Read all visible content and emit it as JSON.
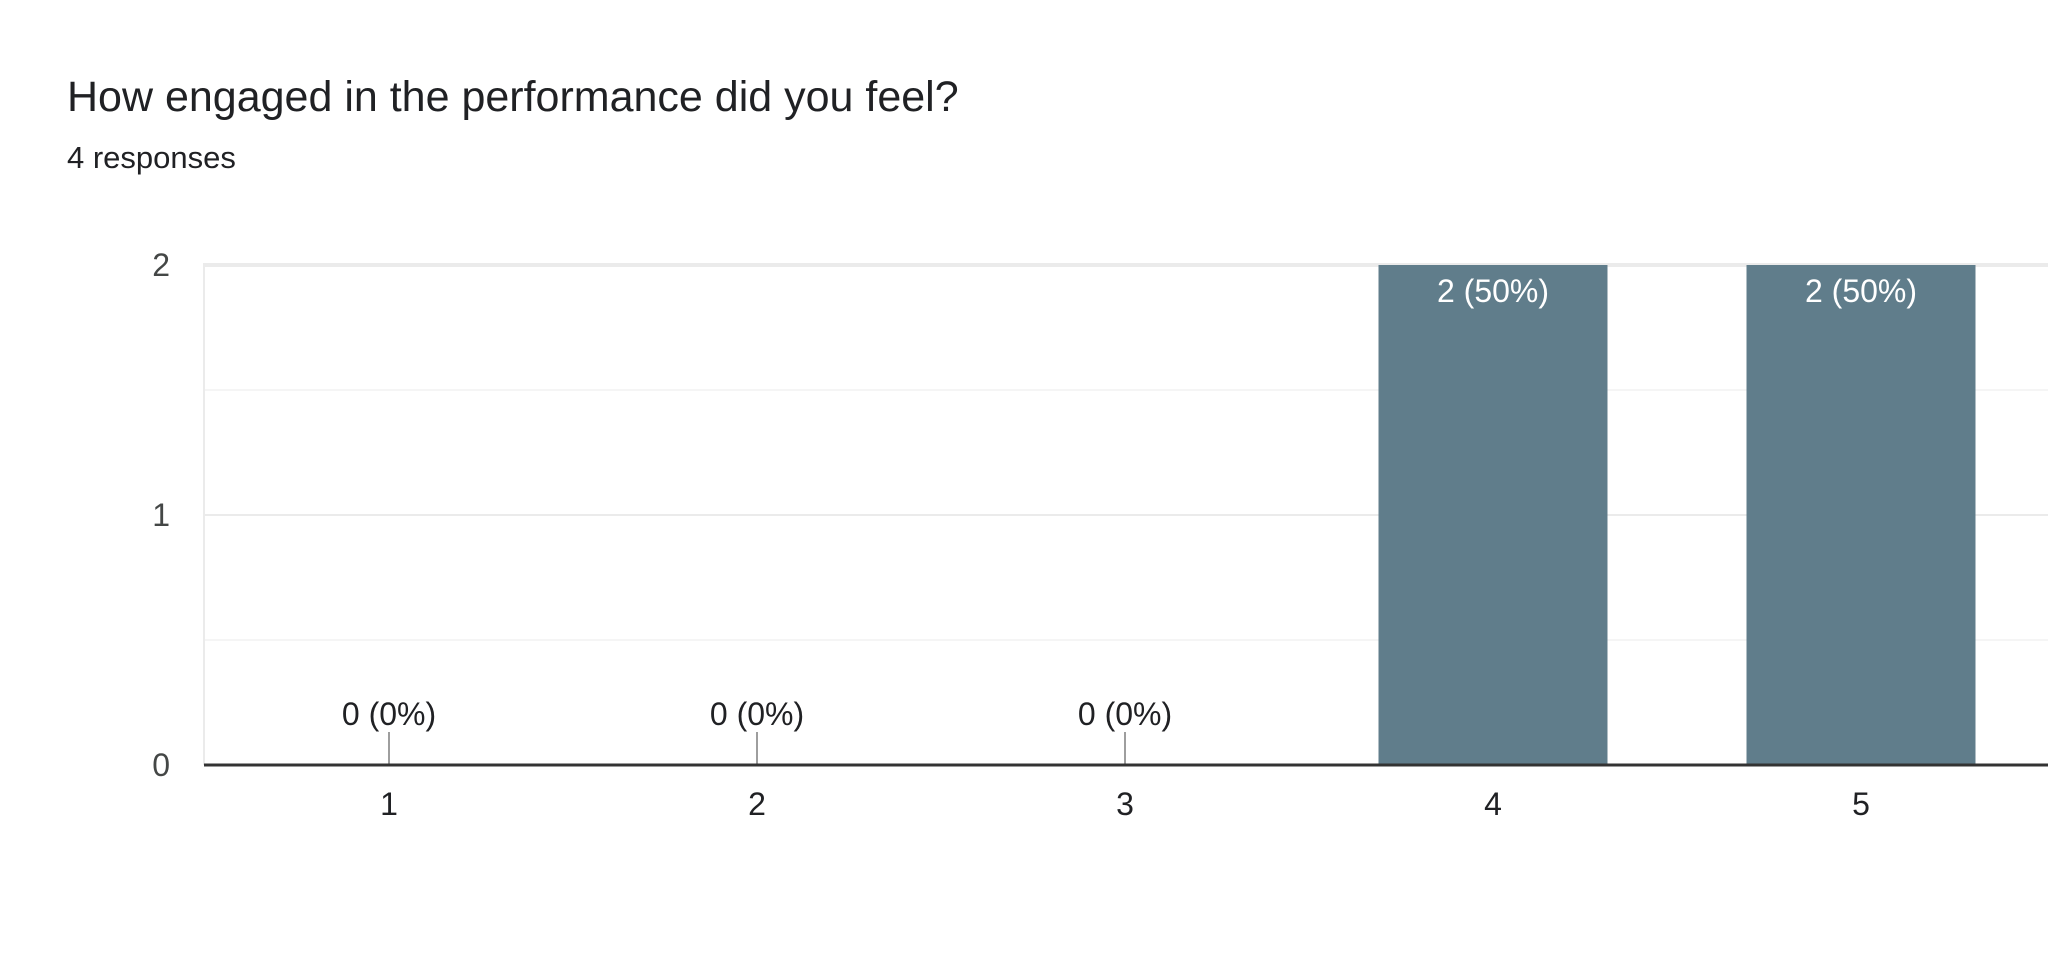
{
  "question": {
    "title": "How engaged in the performance did you feel?",
    "responses_label": "4 responses"
  },
  "colors": {
    "bar": "#607d8b",
    "gridline": "#ebebeb",
    "minor_gridline": "#f5f5f5",
    "axis": "#333333",
    "label_inside": "#ffffff",
    "label_outside": "#202124",
    "zero_tick": "#9e9e9e"
  },
  "chart_data": {
    "type": "bar",
    "title": "",
    "xlabel": "",
    "ylabel": "",
    "categories": [
      "1",
      "2",
      "3",
      "4",
      "5"
    ],
    "values": [
      0,
      0,
      0,
      2,
      2
    ],
    "data_labels": [
      "0 (0%)",
      "0 (0%)",
      "0 (0%)",
      "2 (50%)",
      "2 (50%)"
    ],
    "ylim": [
      0,
      2
    ],
    "yticks": [
      "0",
      "1",
      "2"
    ],
    "grid": true,
    "legend": "none"
  }
}
